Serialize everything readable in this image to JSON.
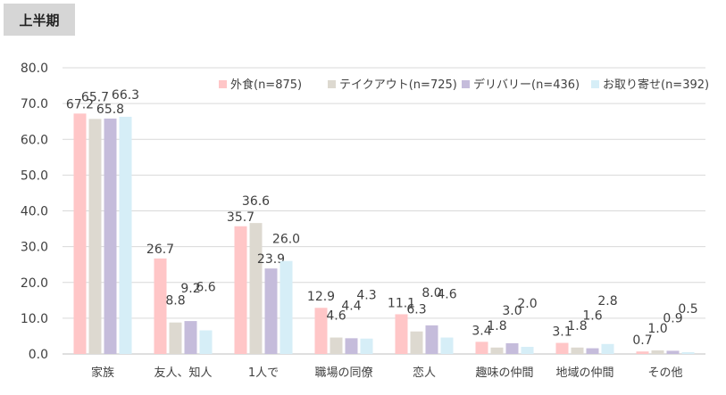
{
  "page_title": "上半期",
  "chart_data": {
    "type": "bar",
    "title": "",
    "xlabel": "",
    "ylabel": "",
    "ylim": [
      0,
      80
    ],
    "yticks": [
      "0.0",
      "10.0",
      "20.0",
      "30.0",
      "40.0",
      "50.0",
      "60.0",
      "70.0",
      "80.0"
    ],
    "grid": true,
    "legend_position": "top-right",
    "categories": [
      "家族",
      "友人、知人",
      "1人で",
      "職場の同僚",
      "恋人",
      "趣味の仲間",
      "地域の仲間",
      "その他"
    ],
    "series": [
      {
        "name": "外食(n=875)",
        "color": "#ffc6c7",
        "values": [
          67.2,
          26.7,
          35.7,
          12.9,
          11.1,
          3.4,
          3.1,
          0.7
        ]
      },
      {
        "name": "テイクアウト(n=725)",
        "color": "#ddd9d0",
        "values": [
          65.7,
          8.8,
          36.6,
          4.6,
          6.3,
          1.8,
          1.8,
          1.0
        ]
      },
      {
        "name": "デリバリー(n=436)",
        "color": "#c5bcdb",
        "values": [
          65.8,
          9.2,
          23.9,
          4.4,
          8.0,
          3.0,
          1.6,
          0.9
        ]
      },
      {
        "name": "お取り寄せ(n=392)",
        "color": "#d6eef7",
        "values": [
          66.3,
          6.6,
          26.0,
          4.3,
          4.6,
          2.0,
          2.8,
          0.5
        ]
      }
    ]
  }
}
